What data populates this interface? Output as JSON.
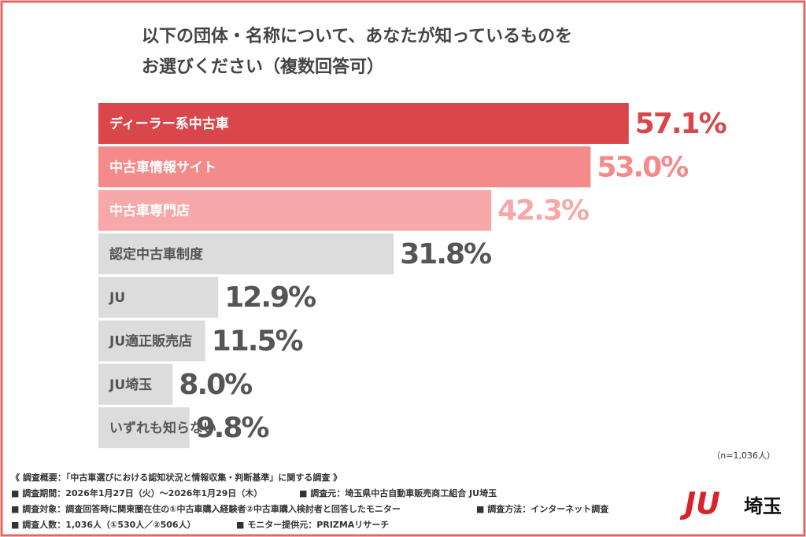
{
  "chart_data": {
    "type": "hbar",
    "title": [
      "以下の団体・名称について、あなたが知っているものを",
      "お選びください（複数回答可）"
    ],
    "categories": [
      "ディーラー系中古車",
      "中古車情報サイト",
      "中古車専門店",
      "認定中古車制度",
      "JU",
      "JU適正販売店",
      "JU埼玉",
      "いずれも知らない"
    ],
    "values": [
      57.1,
      53.0,
      42.3,
      31.8,
      12.9,
      11.5,
      8.0,
      9.8
    ],
    "value_labels": [
      "57.1%",
      "53.0%",
      "42.3%",
      "31.8%",
      "12.9%",
      "11.5%",
      "8.0%",
      "9.8%"
    ],
    "colors": [
      "#d9474b",
      "#f48a8a",
      "#f7a8a8",
      "#dcdcdc",
      "#dcdcdc",
      "#dcdcdc",
      "#dcdcdc",
      "#dcdcdc"
    ],
    "label_colors": [
      "#d9474b",
      "#f48a8a",
      "#f7a8a8",
      "#555555",
      "#555555",
      "#555555",
      "#555555",
      "#555555"
    ],
    "category_text_colors": [
      "#ffffff",
      "#ffffff",
      "#ffffff",
      "#555555",
      "#555555",
      "#555555",
      "#555555",
      "#555555"
    ],
    "note": "（n=1,036人）"
  },
  "footer": {
    "summary": "《 調査概要：「中古車選びにおける認知状況と情報収集・判断基準」に関する調査 》",
    "items": [
      "■ 調査期間：2026年1月27日（火）〜2026年1月29日（木）",
      "■ 調査元：埼玉県中古自動車販売商工組合 JU埼玉",
      "■ 調査対象：調査回答時に関東圏在住の①中古車購入経験者②中古車購入検討者と回答したモニター",
      "■ 調査方法：インターネット調査",
      "■ 調査人数：1,036人（①530人／②506人）",
      "■ モニター提供元：PRIZMAリサーチ"
    ]
  },
  "logo": {
    "mark": "JU",
    "text": "埼玉"
  }
}
